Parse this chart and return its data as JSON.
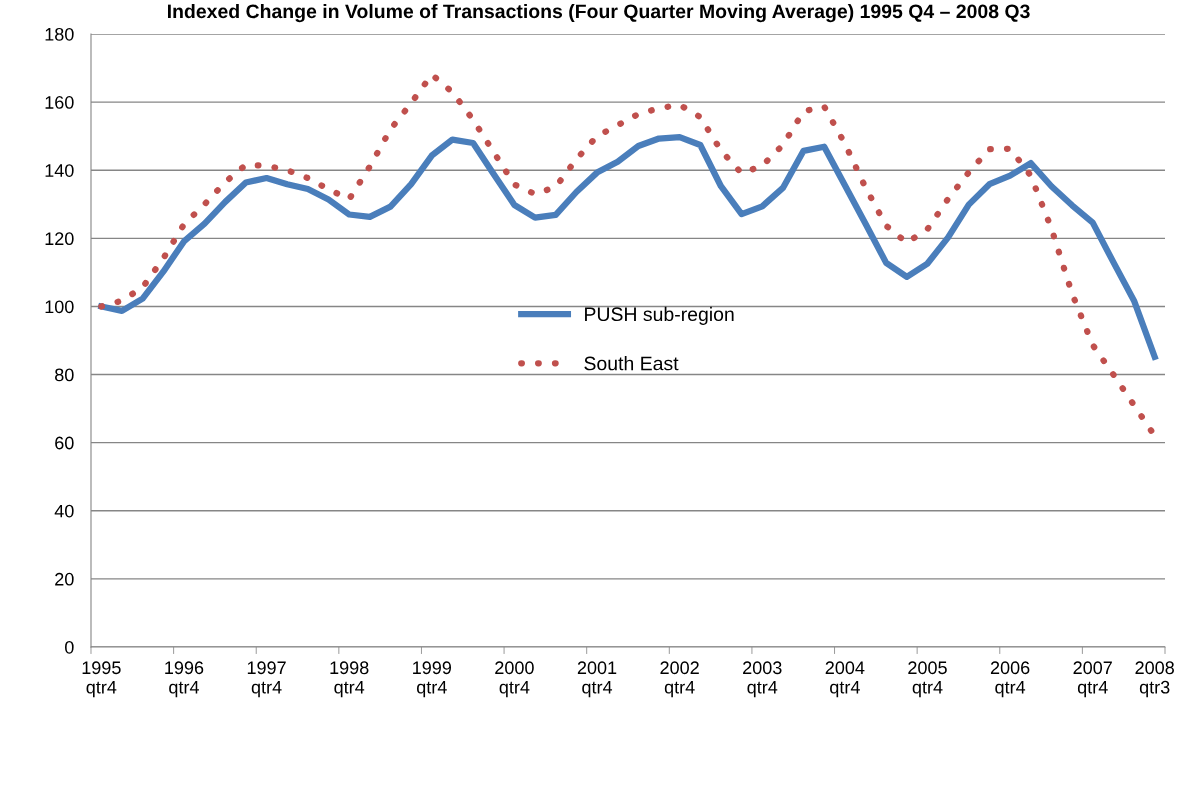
{
  "chart_data": {
    "type": "line",
    "title": "Indexed Change in Volume of Transactions (Four Quarter Moving Average) 1995 Q4 – 2008 Q3",
    "categories": [
      "1995\nqtr4",
      null,
      null,
      null,
      "1996\nqtr4",
      null,
      null,
      null,
      "1997\nqtr4",
      null,
      null,
      null,
      "1998\nqtr4",
      null,
      null,
      null,
      "1999\nqtr4",
      null,
      null,
      null,
      "2000\nqtr4",
      null,
      null,
      null,
      "2001\nqtr4",
      null,
      null,
      null,
      "2002\nqtr4",
      null,
      null,
      null,
      "2003\nqtr4",
      null,
      null,
      null,
      "2004\nqtr4",
      null,
      null,
      null,
      "2005\nqtr4",
      null,
      null,
      null,
      "2006\nqtr4",
      null,
      null,
      null,
      "2007\nqtr4",
      null,
      null,
      "2008\nqtr3"
    ],
    "series": [
      {
        "name": "PUSH sub-region",
        "color": "#4a7ebb",
        "line_style": "solid",
        "values": [
          100,
          98.7,
          102.3,
          110.2,
          119.1,
          124.3,
          130.7,
          136.4,
          137.7,
          135.9,
          134.5,
          131.4,
          127.0,
          126.3,
          129.3,
          135.9,
          144.3,
          149.0,
          148.0,
          138.8,
          129.8,
          126.1,
          126.9,
          133.6,
          139.3,
          142.5,
          147.1,
          149.3,
          149.7,
          147.4,
          135.3,
          127.1,
          129.4,
          134.8,
          145.7,
          146.9,
          135.6,
          124.3,
          112.8,
          108.7,
          112.6,
          120.3,
          129.9,
          135.9,
          138.4,
          142.1,
          135.3,
          129.7,
          124.6,
          113.0,
          101.7,
          85.2
        ]
      },
      {
        "name": "South East",
        "color": "#c0504d",
        "line_style": "dotted",
        "values": [
          100,
          101.7,
          105.6,
          114.1,
          124.1,
          130.0,
          136.5,
          141.6,
          141.3,
          140.0,
          137.7,
          134.4,
          131.5,
          141.1,
          152.0,
          159.7,
          168.1,
          162.9,
          154.8,
          145.3,
          135.8,
          133.0,
          135.1,
          143.2,
          150,
          153.2,
          156.5,
          158.2,
          159.2,
          155.6,
          145.8,
          139.1,
          141.3,
          147.4,
          157.3,
          158.7,
          147.8,
          134.9,
          123.7,
          118.7,
          122.7,
          131.6,
          139.4,
          146.2,
          146.3,
          138.4,
          122.9,
          103.8,
          88.7,
          80,
          71,
          62
        ]
      }
    ],
    "ylim": [
      0,
      180
    ],
    "yticks": [
      0,
      20,
      40,
      60,
      80,
      100,
      120,
      140,
      160,
      180
    ],
    "grid": "y",
    "legend": "center"
  }
}
